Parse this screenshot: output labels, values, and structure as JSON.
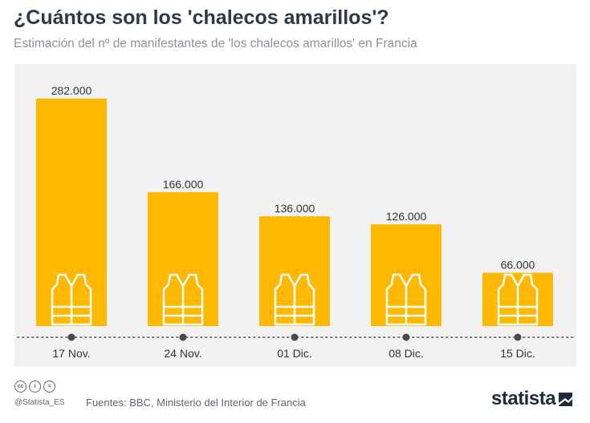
{
  "title": "¿Cuántos son los 'chalecos amarillos'?",
  "subtitle": "Estimación del nº de manifestantes de 'los chalecos amarillos' en Francia",
  "footer": {
    "handle": "@Statista_ES",
    "sources": "Fuentes: BBC, Ministerio del Interior de Francia",
    "logo": "statista",
    "license_icons": [
      "cc-icon",
      "attribution-icon",
      "no-derivatives-icon"
    ]
  },
  "colors": {
    "bar": "#ffb800",
    "vest": "#ffffff",
    "plot_bg": "#f2f2f2",
    "axis_dots": "#7a7a7a",
    "tick_marker": "#4a4a4a"
  },
  "chart_data": {
    "type": "bar",
    "categories": [
      "17 Nov.",
      "24 Nov.",
      "01 Dic.",
      "08 Dic.",
      "15 Dic."
    ],
    "values": [
      282000,
      166000,
      136000,
      126000,
      66000
    ],
    "value_labels": [
      "282.000",
      "166.000",
      "136.000",
      "126.000",
      "66.000"
    ],
    "ylim": [
      0,
      282000
    ],
    "grid": false,
    "legend": "none",
    "bar_icon": "yellow-vest-icon"
  }
}
